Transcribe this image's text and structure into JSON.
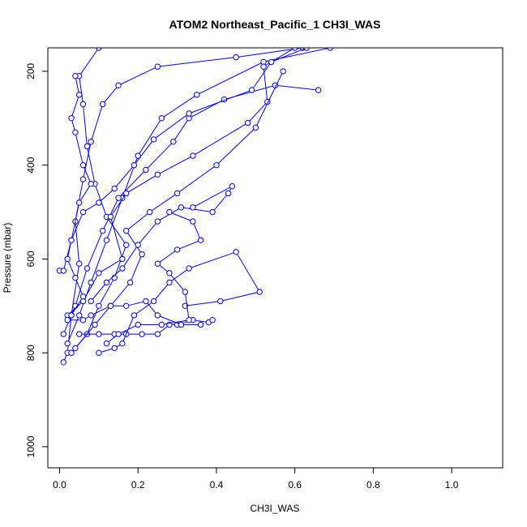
{
  "chart_data": {
    "type": "line",
    "title": "ATOM2 Northeast_Pacific_1 CH3I_WAS",
    "xlabel": "CH3I_WAS",
    "ylabel": "Pressure (mbar)",
    "xlim": [
      -0.03,
      1.13
    ],
    "ylim": [
      1045,
      150
    ],
    "y_reversed": true,
    "x_ticks": [
      "0.0",
      "0.2",
      "0.4",
      "0.6",
      "0.8",
      "1.0"
    ],
    "y_ticks": [
      "200",
      "400",
      "600",
      "800",
      "1000"
    ],
    "x_tick_values": [
      0.0,
      0.2,
      0.4,
      0.6,
      0.8,
      1.0
    ],
    "y_tick_values": [
      200,
      400,
      600,
      800,
      1000
    ],
    "grid": false,
    "legend": "none",
    "marker": "open-circle",
    "line_color": "#0000ff",
    "series": [
      {
        "points": [
          [
            0.01,
            820
          ],
          [
            0.02,
            800
          ],
          [
            0.03,
            720
          ],
          [
            0.05,
            610
          ],
          [
            0.04,
            520
          ],
          [
            0.06,
            430
          ],
          [
            0.08,
            350
          ],
          [
            0.11,
            270
          ],
          [
            0.15,
            230
          ],
          [
            0.25,
            190
          ],
          [
            0.45,
            170
          ],
          [
            0.62,
            150
          ]
        ]
      },
      {
        "points": [
          [
            0.02,
            780
          ],
          [
            0.05,
            720
          ],
          [
            0.08,
            650
          ],
          [
            0.12,
            560
          ],
          [
            0.16,
            470
          ],
          [
            0.2,
            380
          ],
          [
            0.26,
            300
          ],
          [
            0.35,
            250
          ],
          [
            0.52,
            180
          ],
          [
            0.69,
            150
          ]
        ]
      },
      {
        "points": [
          [
            0.03,
            800
          ],
          [
            0.07,
            760
          ],
          [
            0.1,
            700
          ],
          [
            0.14,
            640
          ],
          [
            0.17,
            570
          ],
          [
            0.12,
            510
          ],
          [
            0.09,
            440
          ],
          [
            0.07,
            360
          ],
          [
            0.06,
            270
          ],
          [
            0.05,
            210
          ],
          [
            0.1,
            150
          ]
        ]
      },
      {
        "points": [
          [
            0.01,
            760
          ],
          [
            0.04,
            700
          ],
          [
            0.07,
            620
          ],
          [
            0.11,
            540
          ],
          [
            0.15,
            470
          ],
          [
            0.22,
            410
          ],
          [
            0.29,
            350
          ],
          [
            0.33,
            300
          ],
          [
            0.42,
            260
          ],
          [
            0.55,
            230
          ],
          [
            0.66,
            240
          ]
        ]
      },
      {
        "points": [
          [
            0.02,
            720
          ],
          [
            0.06,
            690
          ],
          [
            0.1,
            630
          ],
          [
            0.16,
            600
          ],
          [
            0.13,
            510
          ],
          [
            0.17,
            460
          ],
          [
            0.25,
            420
          ],
          [
            0.34,
            380
          ],
          [
            0.48,
            310
          ],
          [
            0.53,
            265
          ],
          [
            0.52,
            190
          ],
          [
            0.6,
            150
          ]
        ]
      },
      {
        "points": [
          [
            0.04,
            790
          ],
          [
            0.09,
            740
          ],
          [
            0.13,
            700
          ],
          [
            0.18,
            650
          ],
          [
            0.21,
            590
          ],
          [
            0.17,
            540
          ],
          [
            0.23,
            500
          ],
          [
            0.3,
            460
          ],
          [
            0.4,
            400
          ],
          [
            0.5,
            320
          ],
          [
            0.57,
            200
          ]
        ]
      },
      {
        "points": [
          [
            0.0,
            625
          ],
          [
            0.01,
            625
          ],
          [
            0.03,
            560
          ],
          [
            0.06,
            500
          ],
          [
            0.1,
            480
          ],
          [
            0.14,
            450
          ],
          [
            0.19,
            400
          ],
          [
            0.24,
            345
          ],
          [
            0.33,
            290
          ],
          [
            0.49,
            240
          ],
          [
            0.54,
            180
          ],
          [
            0.63,
            150
          ]
        ]
      },
      {
        "points": [
          [
            0.05,
            760
          ],
          [
            0.1,
            760
          ],
          [
            0.14,
            760
          ],
          [
            0.17,
            760
          ],
          [
            0.21,
            760
          ],
          [
            0.25,
            760
          ],
          [
            0.28,
            740
          ],
          [
            0.3,
            740
          ],
          [
            0.34,
            730
          ],
          [
            0.38,
            735
          ],
          [
            0.39,
            730
          ]
        ]
      },
      {
        "points": [
          [
            0.02,
            730
          ],
          [
            0.06,
            730
          ],
          [
            0.08,
            720
          ],
          [
            0.13,
            700
          ],
          [
            0.17,
            700
          ],
          [
            0.22,
            690
          ],
          [
            0.25,
            720
          ],
          [
            0.31,
            740
          ],
          [
            0.36,
            740
          ]
        ]
      },
      {
        "points": [
          [
            0.08,
            690
          ],
          [
            0.12,
            650
          ],
          [
            0.16,
            620
          ],
          [
            0.2,
            570
          ],
          [
            0.25,
            520
          ],
          [
            0.31,
            490
          ],
          [
            0.39,
            500
          ],
          [
            0.43,
            460
          ],
          [
            0.44,
            445
          ],
          [
            0.34,
            490
          ]
        ]
      },
      {
        "points": [
          [
            0.1,
            800
          ],
          [
            0.14,
            790
          ],
          [
            0.16,
            780
          ],
          [
            0.19,
            720
          ],
          [
            0.24,
            690
          ],
          [
            0.28,
            650
          ],
          [
            0.33,
            620
          ],
          [
            0.45,
            585
          ],
          [
            0.51,
            670
          ],
          [
            0.41,
            690
          ],
          [
            0.32,
            700
          ]
        ]
      },
      {
        "points": [
          [
            0.03,
            720
          ],
          [
            0.06,
            680
          ],
          [
            0.04,
            640
          ],
          [
            0.02,
            600
          ],
          [
            0.03,
            560
          ],
          [
            0.05,
            480
          ],
          [
            0.08,
            440
          ],
          [
            0.06,
            400
          ],
          [
            0.04,
            330
          ],
          [
            0.03,
            300
          ],
          [
            0.05,
            250
          ],
          [
            0.04,
            210
          ]
        ]
      },
      {
        "points": [
          [
            0.12,
            780
          ],
          [
            0.15,
            760
          ],
          [
            0.2,
            740
          ],
          [
            0.26,
            740
          ],
          [
            0.33,
            730
          ],
          [
            0.32,
            670
          ],
          [
            0.28,
            630
          ],
          [
            0.25,
            610
          ],
          [
            0.3,
            580
          ],
          [
            0.36,
            560
          ],
          [
            0.34,
            520
          ],
          [
            0.28,
            500
          ]
        ]
      }
    ]
  }
}
